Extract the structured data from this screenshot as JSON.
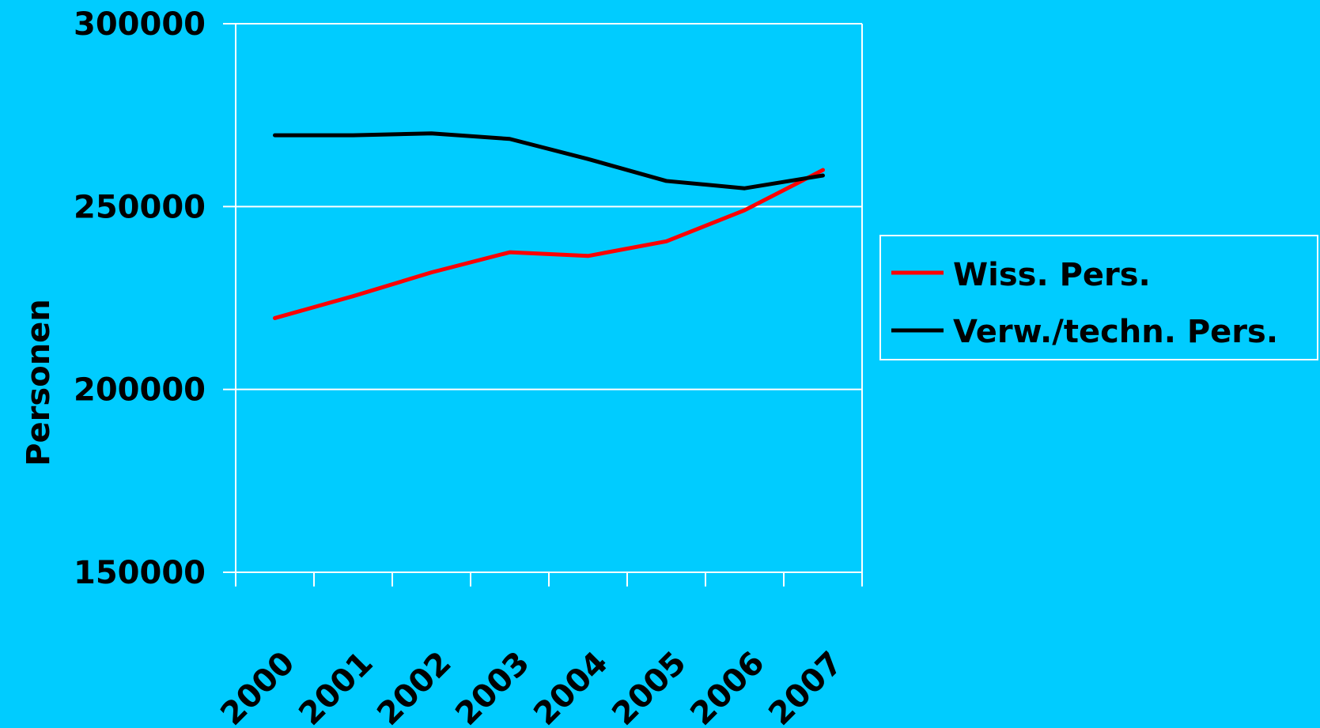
{
  "chart_data": {
    "type": "line",
    "title": "",
    "xlabel": "",
    "ylabel": "Personen",
    "ylim": [
      150000,
      300000
    ],
    "yticks": [
      150000,
      200000,
      250000,
      300000
    ],
    "ytick_labels": [
      "150000",
      "200000",
      "250000",
      "300000"
    ],
    "categories": [
      "2000",
      "2001",
      "2002",
      "2003",
      "2004",
      "2005",
      "2006",
      "2007"
    ],
    "grid": {
      "horizontal": true,
      "vertical": false
    },
    "legend": {
      "position": "right"
    },
    "series": [
      {
        "name": "Wiss. Pers.",
        "color": "#FF0000",
        "values": [
          219500,
          225500,
          232000,
          237500,
          236500,
          240500,
          249000,
          260000
        ]
      },
      {
        "name": "Verw./techn. Pers.",
        "color": "#000000",
        "values": [
          269500,
          269500,
          270000,
          268500,
          263000,
          257000,
          255000,
          258500
        ]
      }
    ],
    "colors": {
      "background": "#00CCFF",
      "grid": "#FFFFFF",
      "axis": "#FFFFFF"
    }
  }
}
